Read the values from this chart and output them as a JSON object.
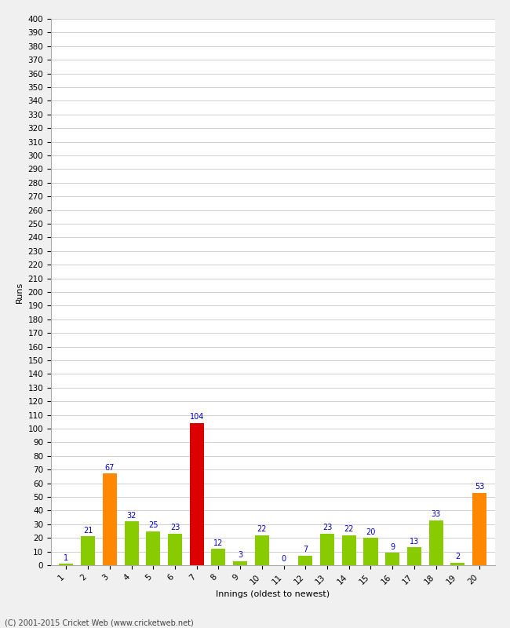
{
  "innings": [
    1,
    2,
    3,
    4,
    5,
    6,
    7,
    8,
    9,
    10,
    11,
    12,
    13,
    14,
    15,
    16,
    17,
    18,
    19,
    20
  ],
  "runs": [
    1,
    21,
    67,
    32,
    25,
    23,
    104,
    12,
    3,
    22,
    0,
    7,
    23,
    22,
    20,
    9,
    13,
    33,
    2,
    53
  ],
  "colors": [
    "#88cc00",
    "#88cc00",
    "#ff8800",
    "#88cc00",
    "#88cc00",
    "#88cc00",
    "#dd0000",
    "#88cc00",
    "#88cc00",
    "#88cc00",
    "#88cc00",
    "#88cc00",
    "#88cc00",
    "#88cc00",
    "#88cc00",
    "#88cc00",
    "#88cc00",
    "#88cc00",
    "#88cc00",
    "#ff8800"
  ],
  "xlabel": "Innings (oldest to newest)",
  "ylabel": "Runs",
  "ytick_step": 10,
  "ymax": 400,
  "label_color": "#0000cc",
  "label_fontsize": 7,
  "axis_label_fontsize": 8,
  "tick_fontsize": 7.5,
  "bg_color": "#f0f0f0",
  "plot_bg_color": "#ffffff",
  "footer": "(C) 2001-2015 Cricket Web (www.cricketweb.net)",
  "footer_fontsize": 7
}
